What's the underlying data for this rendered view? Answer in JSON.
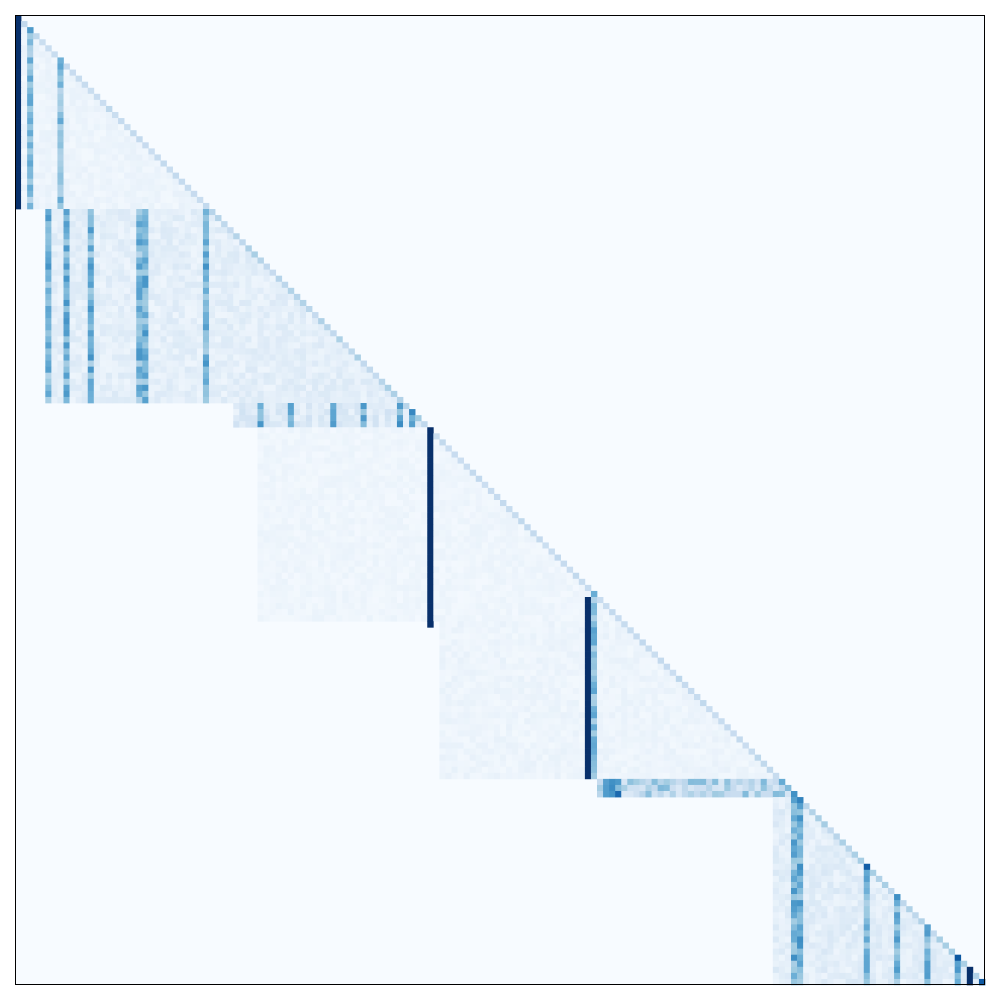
{
  "chart_data": {
    "type": "heatmap",
    "title": "",
    "xlabel": "",
    "ylabel": "",
    "grid": false,
    "legend": "none",
    "n": 160,
    "colormap": "Blues",
    "value_range": [
      0,
      1
    ],
    "pattern": "causal-attention",
    "bands": [
      {
        "rows": [
          0,
          31
        ],
        "cols": [
          0,
          31
        ],
        "base": 0.06,
        "strong_cols": [
          0,
          2,
          7
        ]
      },
      {
        "rows": [
          32,
          63
        ],
        "cols": [
          5,
          63
        ],
        "base": 0.11,
        "strong_cols": [
          5,
          8,
          12,
          20,
          21,
          31
        ]
      },
      {
        "rows": [
          64,
          67
        ],
        "cols": [
          36,
          67
        ],
        "base": 0.15,
        "strong_cols": [
          40,
          45,
          52,
          57,
          63,
          65
        ]
      },
      {
        "rows": [
          68,
          99
        ],
        "cols": [
          40,
          99
        ],
        "base": 0.05,
        "strong_cols": [
          68,
          95
        ]
      },
      {
        "rows": [
          100,
          125
        ],
        "cols": [
          70,
          125
        ],
        "base": 0.06,
        "strong_cols": [
          94,
          95
        ]
      },
      {
        "rows": [
          126,
          128
        ],
        "cols": [
          96,
          128
        ],
        "base": 0.35,
        "strong_cols": [
          97,
          98,
          99
        ]
      },
      {
        "rows": [
          129,
          159
        ],
        "cols": [
          125,
          159
        ],
        "base": 0.12,
        "strong_cols": [
          128,
          129,
          140,
          145,
          150,
          155,
          159
        ]
      }
    ],
    "dark_vertical_lines": [
      {
        "col": 0,
        "rows": [
          0,
          31
        ]
      },
      {
        "col": 68,
        "rows": [
          68,
          100
        ]
      },
      {
        "col": 94,
        "rows": [
          96,
          125
        ]
      },
      {
        "col": 157,
        "rows": [
          157,
          159
        ]
      }
    ]
  }
}
